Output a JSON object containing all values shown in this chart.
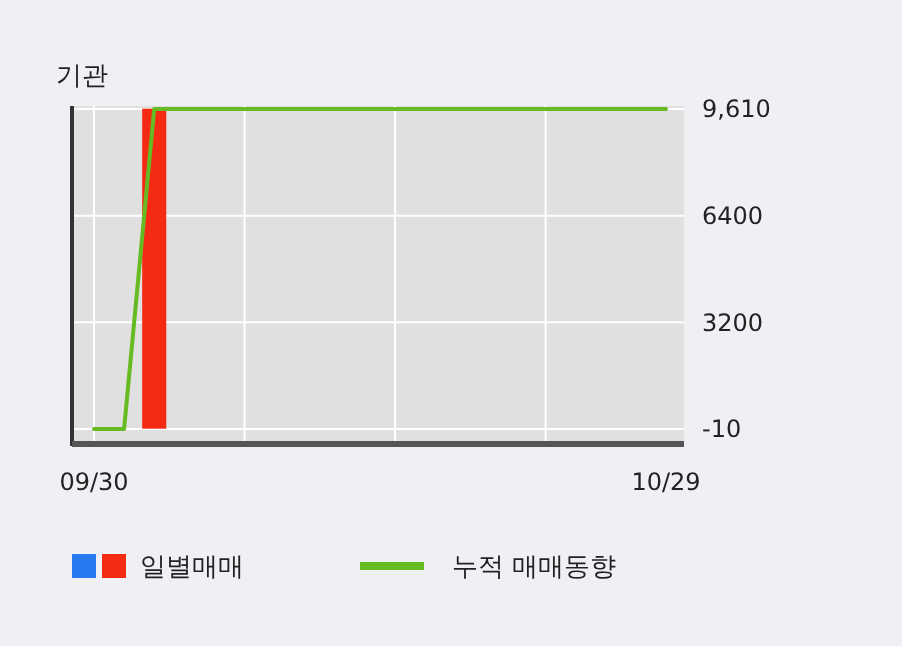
{
  "chart_data": {
    "type": "bar",
    "title": "기관",
    "categories": [
      "09/30",
      null,
      null,
      null,
      null,
      null,
      null,
      null,
      null,
      null,
      null,
      null,
      null,
      null,
      null,
      null,
      null,
      null,
      null,
      "10/29"
    ],
    "series": [
      {
        "name": "일별매매",
        "color": "#f52a14",
        "colors": [
          "#2979f2",
          "#f52a14",
          "#f52a14",
          "#f52a14",
          "#f52a14",
          "#f52a14",
          "#f52a14",
          "#f52a14",
          "#f52a14",
          "#f52a14",
          "#f52a14",
          "#f52a14",
          "#f52a14",
          "#f52a14",
          "#f52a14",
          "#f52a14",
          "#f52a14",
          "#f52a14",
          "#f52a14",
          "#f52a14"
        ],
        "values": [
          null,
          0,
          9620,
          0,
          0,
          0,
          0,
          0,
          0,
          0,
          0,
          0,
          0,
          0,
          0,
          0,
          0,
          0,
          0,
          0
        ]
      },
      {
        "name": "누적 매매동향",
        "type": "line",
        "color": "#66bb22",
        "values": [
          -10,
          -10,
          9610,
          9610,
          9610,
          9610,
          9610,
          9610,
          9610,
          9610,
          9610,
          9610,
          9610,
          9610,
          9610,
          9610,
          9610,
          9610,
          9610,
          9610
        ]
      }
    ],
    "ylim": [
      -400,
      9700
    ],
    "yticks": [
      {
        "value": 9610,
        "label": "9,610"
      },
      6400,
      3200,
      -10
    ],
    "grid": true,
    "legend": "bottom"
  }
}
